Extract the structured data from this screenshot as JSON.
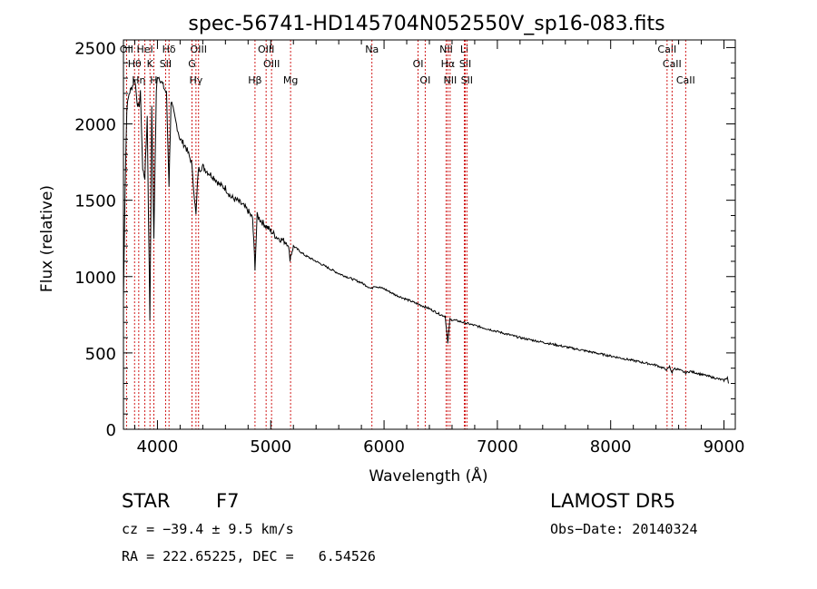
{
  "chart_data": {
    "type": "line",
    "title": "spec-56741-HD145704N052550V_sp16-083.fits",
    "xlabel": "Wavelength (Å)",
    "ylabel": "Flux (relative)",
    "xlim": [
      3700,
      9100
    ],
    "ylim": [
      0,
      2550
    ],
    "xticks": [
      4000,
      5000,
      6000,
      7000,
      8000,
      9000
    ],
    "yticks": [
      0,
      500,
      1000,
      1500,
      2000,
      2500
    ],
    "grid": false,
    "line_color": "#000000",
    "marker_color": "#cc0000",
    "series": [
      {
        "x": [
          3700,
          3715,
          3730,
          3750,
          3780,
          3800,
          3820,
          3835,
          3850,
          3870,
          3889,
          3910,
          3933,
          3950,
          3968,
          3990,
          4000,
          4020,
          4050,
          4080,
          4102,
          4120,
          4150,
          4200,
          4250,
          4300,
          4320,
          4340,
          4360,
          4400,
          4450,
          4500,
          4550,
          4600,
          4650,
          4700,
          4750,
          4800,
          4840,
          4861,
          4880,
          4920,
          4960,
          5000,
          5050,
          5100,
          5150,
          5170,
          5200,
          5300,
          5400,
          5500,
          5600,
          5700,
          5800,
          5890,
          5910,
          6000,
          6100,
          6200,
          6300,
          6400,
          6500,
          6540,
          6563,
          6580,
          6650,
          6700,
          6800,
          7000,
          7200,
          7400,
          7600,
          7800,
          8000,
          8200,
          8400,
          8498,
          8520,
          8542,
          8560,
          8600,
          8662,
          8700,
          8800,
          8900,
          9000,
          9030,
          9040
        ],
        "y": [
          850,
          1600,
          2100,
          2200,
          2250,
          2300,
          2150,
          2100,
          2200,
          1700,
          1650,
          2050,
          720,
          2100,
          1250,
          2200,
          2320,
          2300,
          2250,
          2200,
          1600,
          2150,
          2050,
          1900,
          1850,
          1750,
          1580,
          1400,
          1700,
          1720,
          1680,
          1650,
          1600,
          1580,
          1520,
          1500,
          1470,
          1430,
          1380,
          1060,
          1400,
          1360,
          1330,
          1300,
          1260,
          1240,
          1220,
          1120,
          1200,
          1140,
          1100,
          1060,
          1020,
          990,
          960,
          920,
          940,
          920,
          880,
          850,
          820,
          790,
          750,
          740,
          560,
          720,
          710,
          700,
          680,
          640,
          600,
          570,
          540,
          510,
          480,
          450,
          420,
          390,
          410,
          370,
          400,
          390,
          370,
          380,
          360,
          340,
          320,
          340,
          300
        ]
      }
    ],
    "lines": [
      {
        "name": "OII",
        "x": 3727
      },
      {
        "name": "Hθ",
        "x": 3798
      },
      {
        "name": "Hη",
        "x": 3835
      },
      {
        "name": "HeI",
        "x": 3889
      },
      {
        "name": "K",
        "x": 3934
      },
      {
        "name": "H",
        "x": 3968
      },
      {
        "name": "Hδ",
        "x": 4102
      },
      {
        "name": "SII",
        "x": 4072
      },
      {
        "name": "Hγ",
        "x": 4340
      },
      {
        "name": "OIII",
        "x": 4363
      },
      {
        "name": "G",
        "x": 4305
      },
      {
        "name": "Hβ",
        "x": 4861
      },
      {
        "name": "OIII",
        "x": 4959
      },
      {
        "name": "OIII",
        "x": 5007
      },
      {
        "name": "Mg",
        "x": 5175
      },
      {
        "name": "Na",
        "x": 5893
      },
      {
        "name": "OI",
        "x": 6300
      },
      {
        "name": "OI",
        "x": 6363
      },
      {
        "name": "NII",
        "x": 6548
      },
      {
        "name": "Hα",
        "x": 6563
      },
      {
        "name": "NII",
        "x": 6583
      },
      {
        "name": "Li",
        "x": 6708
      },
      {
        "name": "SII",
        "x": 6717
      },
      {
        "name": "SII",
        "x": 6731
      },
      {
        "name": "CaII",
        "x": 8498
      },
      {
        "name": "CaII",
        "x": 8542
      },
      {
        "name": "CaII",
        "x": 8662
      }
    ]
  },
  "info": {
    "class_label": "STAR",
    "subclass": "F7",
    "survey": "LAMOST DR5",
    "velocity": "cz = −39.4 ± 9.5 km/s",
    "obs_date": "Obs−Date: 20140324",
    "coords": "RA = 222.65225, DEC =   6.54526"
  }
}
